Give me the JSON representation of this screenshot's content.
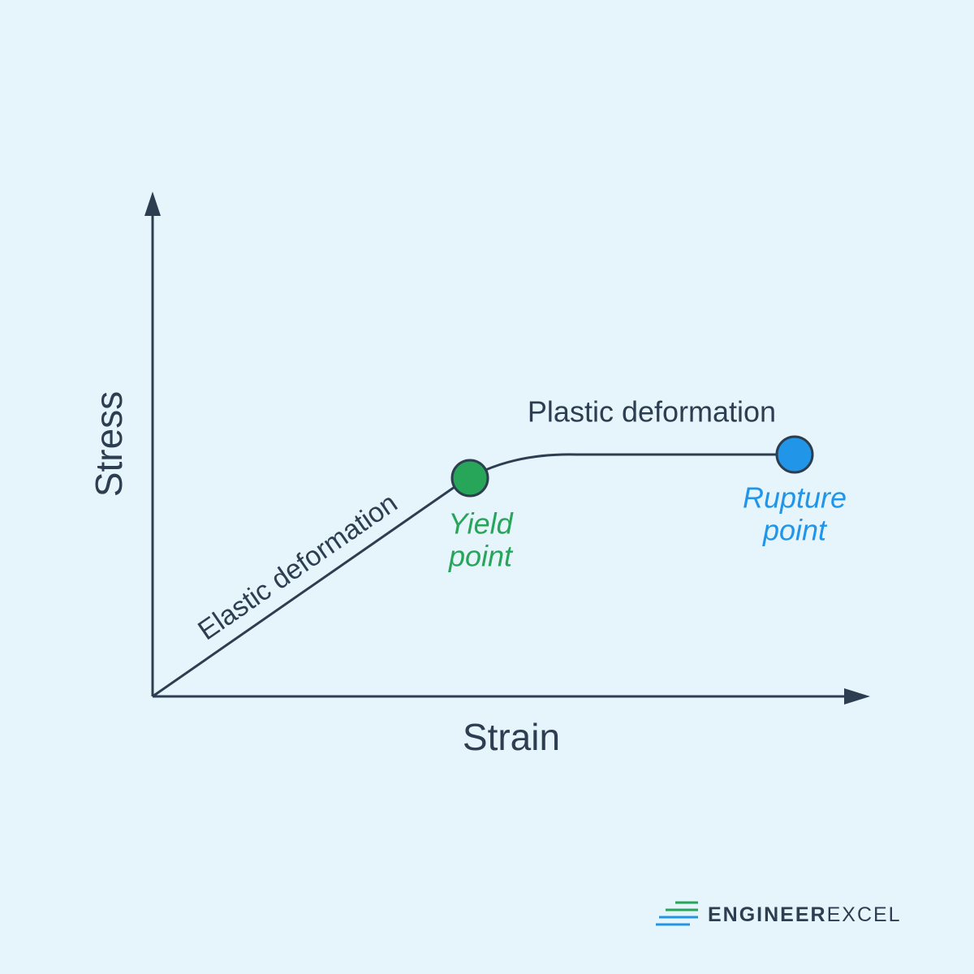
{
  "axes": {
    "y_label": "Stress",
    "x_label": "Strain"
  },
  "regions": {
    "elastic": "Elastic deformation",
    "plastic": "Plastic deformation"
  },
  "points": {
    "yield": {
      "lines": [
        "Yield",
        "point"
      ]
    },
    "rupture": {
      "lines": [
        "Rupture",
        "point"
      ]
    }
  },
  "logo": {
    "part1": "ENGINEER",
    "part2": "EXCEL"
  }
}
